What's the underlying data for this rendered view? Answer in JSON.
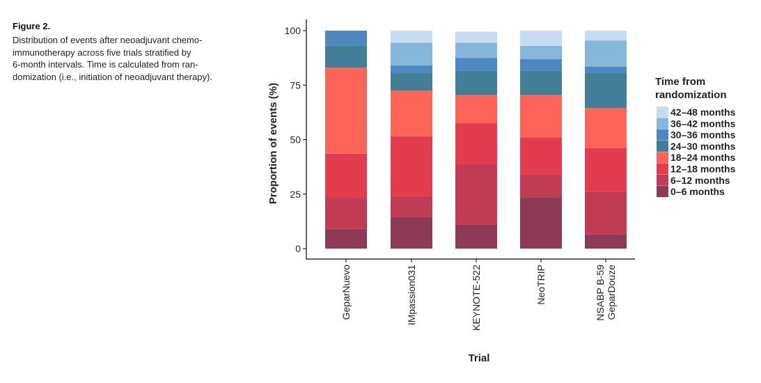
{
  "figure": {
    "label": "Figure 2.",
    "caption_lines": [
      "Distribution of events after neoadjuvant chemo-",
      "immunotherapy across five trials stratified by",
      "6-month intervals. Time is calculated from ran-",
      "domization (i.e., initiation of neoadjuvant therapy)."
    ]
  },
  "chart_data": {
    "type": "bar",
    "stacked": true,
    "title": "",
    "xlabel": "Trial",
    "ylabel": "Proportion of events (%)",
    "ylim": [
      0,
      100
    ],
    "yticks": [
      0,
      25,
      50,
      75,
      100
    ],
    "categories": [
      "GeparNuevo",
      "IMpassion031",
      "KEYNOTE-522",
      "NeoTRIP",
      "NSABP B-59\nGeparDouze"
    ],
    "legend_title": "Time from\nrandomization",
    "legend_position": "right",
    "series": [
      {
        "name": "0–6 months",
        "color": "#8c3a55",
        "values": [
          9,
          14.5,
          11,
          23.5,
          6.5
        ]
      },
      {
        "name": "6–12 months",
        "color": "#c23b55",
        "values": [
          14.5,
          9.5,
          27.5,
          10.5,
          19.5
        ]
      },
      {
        "name": "12–18 months",
        "color": "#e23d4e",
        "values": [
          20,
          27.5,
          19,
          17,
          20
        ]
      },
      {
        "name": "18–24 months",
        "color": "#fa6558",
        "values": [
          39.5,
          21,
          13,
          19.5,
          18.5
        ]
      },
      {
        "name": "24–30 months",
        "color": "#427f96",
        "values": [
          10,
          8,
          11,
          11,
          16
        ]
      },
      {
        "name": "30–36 months",
        "color": "#4f87c0",
        "values": [
          7,
          3.5,
          6,
          5.5,
          3
        ]
      },
      {
        "name": "36–42 months",
        "color": "#86b7da",
        "values": [
          0,
          10.5,
          7,
          6,
          12
        ]
      },
      {
        "name": "42–48 months",
        "color": "#c6dcf0",
        "values": [
          0,
          5.5,
          5,
          7,
          4.5
        ]
      }
    ]
  }
}
